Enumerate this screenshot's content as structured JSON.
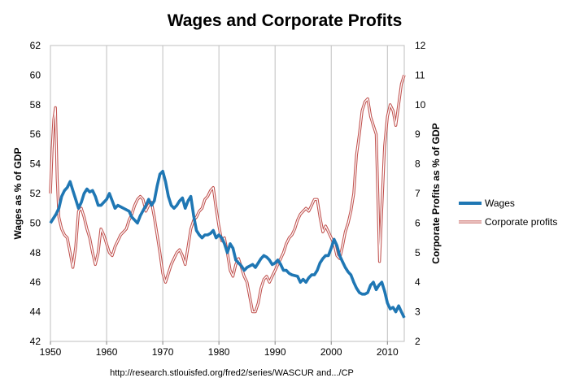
{
  "chart_data": {
    "type": "line",
    "title": "Wages and Corporate Profits",
    "ylabel": "Wages as % of GDP",
    "y2label": "Corporate Profits as % of GDP",
    "xlabel": "",
    "source": "http://research.stlouisfed.org/fred2/series/WASCUR and.../CP",
    "xlim": [
      1950,
      2013
    ],
    "ylim": [
      42,
      62
    ],
    "y2lim": [
      2,
      12
    ],
    "x_ticks": [
      "1950",
      "1960",
      "1970",
      "1980",
      "1990",
      "2000",
      "2010"
    ],
    "y_ticks": [
      "42",
      "44",
      "46",
      "48",
      "50",
      "52",
      "54",
      "56",
      "58",
      "60",
      "62"
    ],
    "y2_ticks": [
      "2",
      "3",
      "4",
      "5",
      "6",
      "7",
      "8",
      "9",
      "10",
      "11",
      "12"
    ],
    "grid": "vertical only",
    "legend_position": "right",
    "series": [
      {
        "name": "Wages",
        "axis": "left",
        "color": "#1f77b4",
        "style": "thick",
        "points": [
          [
            1950.0,
            50.0
          ],
          [
            1950.5,
            50.3
          ],
          [
            1951.0,
            50.6
          ],
          [
            1951.5,
            51.0
          ],
          [
            1952.0,
            51.8
          ],
          [
            1952.5,
            52.2
          ],
          [
            1953.0,
            52.4
          ],
          [
            1953.5,
            52.8
          ],
          [
            1954.0,
            52.2
          ],
          [
            1954.5,
            51.6
          ],
          [
            1955.0,
            51.0
          ],
          [
            1955.5,
            51.4
          ],
          [
            1956.0,
            52.0
          ],
          [
            1956.5,
            52.3
          ],
          [
            1957.0,
            52.1
          ],
          [
            1957.5,
            52.2
          ],
          [
            1958.0,
            51.8
          ],
          [
            1958.5,
            51.2
          ],
          [
            1959.0,
            51.2
          ],
          [
            1959.5,
            51.4
          ],
          [
            1960.0,
            51.6
          ],
          [
            1960.5,
            52.0
          ],
          [
            1961.0,
            51.5
          ],
          [
            1961.5,
            51.0
          ],
          [
            1962.0,
            51.2
          ],
          [
            1963.0,
            51.0
          ],
          [
            1964.0,
            50.8
          ],
          [
            1964.5,
            50.4
          ],
          [
            1965.0,
            50.2
          ],
          [
            1965.5,
            50.0
          ],
          [
            1966.0,
            50.5
          ],
          [
            1967.0,
            51.2
          ],
          [
            1967.5,
            51.6
          ],
          [
            1968.0,
            51.2
          ],
          [
            1968.5,
            51.5
          ],
          [
            1969.0,
            52.5
          ],
          [
            1969.5,
            53.3
          ],
          [
            1970.0,
            53.5
          ],
          [
            1970.5,
            52.8
          ],
          [
            1971.0,
            51.8
          ],
          [
            1971.5,
            51.2
          ],
          [
            1972.0,
            51.0
          ],
          [
            1972.5,
            51.2
          ],
          [
            1973.0,
            51.5
          ],
          [
            1973.5,
            51.7
          ],
          [
            1974.0,
            51.0
          ],
          [
            1974.5,
            51.5
          ],
          [
            1975.0,
            51.8
          ],
          [
            1975.5,
            50.5
          ],
          [
            1976.0,
            49.5
          ],
          [
            1976.5,
            49.2
          ],
          [
            1977.0,
            49.0
          ],
          [
            1977.5,
            49.2
          ],
          [
            1978.0,
            49.2
          ],
          [
            1978.5,
            49.3
          ],
          [
            1979.0,
            49.5
          ],
          [
            1979.5,
            49.0
          ],
          [
            1980.0,
            49.2
          ],
          [
            1980.5,
            49.0
          ],
          [
            1981.0,
            48.6
          ],
          [
            1981.5,
            48.0
          ],
          [
            1982.0,
            48.6
          ],
          [
            1982.5,
            48.3
          ],
          [
            1983.0,
            47.5
          ],
          [
            1983.5,
            47.3
          ],
          [
            1984.0,
            47.1
          ],
          [
            1984.5,
            46.8
          ],
          [
            1985.0,
            47.0
          ],
          [
            1985.5,
            47.1
          ],
          [
            1986.0,
            47.2
          ],
          [
            1986.5,
            47.0
          ],
          [
            1987.0,
            47.3
          ],
          [
            1987.5,
            47.6
          ],
          [
            1988.0,
            47.8
          ],
          [
            1988.5,
            47.7
          ],
          [
            1989.0,
            47.5
          ],
          [
            1989.5,
            47.2
          ],
          [
            1990.0,
            47.3
          ],
          [
            1990.5,
            47.5
          ],
          [
            1991.0,
            47.2
          ],
          [
            1991.5,
            46.8
          ],
          [
            1992.0,
            46.8
          ],
          [
            1992.5,
            46.6
          ],
          [
            1993.0,
            46.5
          ],
          [
            1994.0,
            46.4
          ],
          [
            1994.5,
            46.0
          ],
          [
            1995.0,
            46.2
          ],
          [
            1995.5,
            46.0
          ],
          [
            1996.0,
            46.3
          ],
          [
            1996.5,
            46.5
          ],
          [
            1997.0,
            46.5
          ],
          [
            1997.5,
            46.8
          ],
          [
            1998.0,
            47.3
          ],
          [
            1998.5,
            47.6
          ],
          [
            1999.0,
            47.8
          ],
          [
            1999.5,
            47.8
          ],
          [
            2000.0,
            48.3
          ],
          [
            2000.5,
            48.9
          ],
          [
            2001.0,
            48.5
          ],
          [
            2001.5,
            47.8
          ],
          [
            2002.0,
            47.4
          ],
          [
            2002.5,
            47.0
          ],
          [
            2003.0,
            46.7
          ],
          [
            2003.5,
            46.5
          ],
          [
            2004.0,
            46.0
          ],
          [
            2004.5,
            45.6
          ],
          [
            2005.0,
            45.3
          ],
          [
            2005.5,
            45.2
          ],
          [
            2006.0,
            45.2
          ],
          [
            2006.5,
            45.3
          ],
          [
            2007.0,
            45.8
          ],
          [
            2007.5,
            46.0
          ],
          [
            2008.0,
            45.5
          ],
          [
            2008.5,
            45.8
          ],
          [
            2009.0,
            46.0
          ],
          [
            2009.5,
            45.4
          ],
          [
            2010.0,
            44.6
          ],
          [
            2010.5,
            44.2
          ],
          [
            2011.0,
            44.3
          ],
          [
            2011.5,
            44.0
          ],
          [
            2012.0,
            44.4
          ],
          [
            2012.5,
            44.0
          ],
          [
            2013.0,
            43.6
          ]
        ]
      },
      {
        "name": "Corporate profits",
        "axis": "right",
        "color": "#c0504d",
        "style": "double",
        "points": [
          [
            1950.0,
            7.0
          ],
          [
            1950.3,
            8.5
          ],
          [
            1950.6,
            9.5
          ],
          [
            1950.9,
            9.9
          ],
          [
            1951.2,
            7.5
          ],
          [
            1951.5,
            6.2
          ],
          [
            1952.0,
            5.8
          ],
          [
            1952.5,
            5.6
          ],
          [
            1953.0,
            5.5
          ],
          [
            1953.5,
            5.0
          ],
          [
            1954.0,
            4.5
          ],
          [
            1954.5,
            5.2
          ],
          [
            1955.0,
            6.4
          ],
          [
            1955.5,
            6.5
          ],
          [
            1956.0,
            6.2
          ],
          [
            1956.5,
            5.8
          ],
          [
            1957.0,
            5.5
          ],
          [
            1957.5,
            5.0
          ],
          [
            1958.0,
            4.6
          ],
          [
            1958.5,
            5.0
          ],
          [
            1959.0,
            5.8
          ],
          [
            1959.5,
            5.6
          ],
          [
            1960.0,
            5.3
          ],
          [
            1960.5,
            5.0
          ],
          [
            1961.0,
            4.9
          ],
          [
            1961.5,
            5.2
          ],
          [
            1962.0,
            5.4
          ],
          [
            1962.5,
            5.6
          ],
          [
            1963.0,
            5.7
          ],
          [
            1963.5,
            5.8
          ],
          [
            1964.0,
            6.1
          ],
          [
            1964.5,
            6.3
          ],
          [
            1965.0,
            6.6
          ],
          [
            1965.5,
            6.8
          ],
          [
            1966.0,
            6.9
          ],
          [
            1966.5,
            6.8
          ],
          [
            1967.0,
            6.4
          ],
          [
            1967.5,
            6.6
          ],
          [
            1968.0,
            6.7
          ],
          [
            1968.5,
            6.2
          ],
          [
            1969.0,
            5.6
          ],
          [
            1969.5,
            5.0
          ],
          [
            1970.0,
            4.3
          ],
          [
            1970.5,
            4.0
          ],
          [
            1971.0,
            4.3
          ],
          [
            1971.5,
            4.6
          ],
          [
            1972.0,
            4.8
          ],
          [
            1972.5,
            5.0
          ],
          [
            1973.0,
            5.1
          ],
          [
            1973.5,
            4.9
          ],
          [
            1974.0,
            4.6
          ],
          [
            1974.5,
            5.2
          ],
          [
            1975.0,
            5.8
          ],
          [
            1975.5,
            6.1
          ],
          [
            1976.0,
            6.2
          ],
          [
            1976.5,
            6.4
          ],
          [
            1977.0,
            6.5
          ],
          [
            1977.5,
            6.8
          ],
          [
            1978.0,
            6.9
          ],
          [
            1978.5,
            7.1
          ],
          [
            1979.0,
            7.2
          ],
          [
            1979.5,
            6.5
          ],
          [
            1980.0,
            5.9
          ],
          [
            1980.5,
            5.4
          ],
          [
            1981.0,
            5.5
          ],
          [
            1981.5,
            5.0
          ],
          [
            1982.0,
            4.4
          ],
          [
            1982.5,
            4.2
          ],
          [
            1983.0,
            4.6
          ],
          [
            1983.5,
            4.8
          ],
          [
            1984.0,
            4.5
          ],
          [
            1984.5,
            4.2
          ],
          [
            1985.0,
            4.0
          ],
          [
            1985.5,
            3.5
          ],
          [
            1986.0,
            3.0
          ],
          [
            1986.5,
            3.0
          ],
          [
            1987.0,
            3.3
          ],
          [
            1987.5,
            3.8
          ],
          [
            1988.0,
            4.1
          ],
          [
            1988.5,
            4.2
          ],
          [
            1989.0,
            4.0
          ],
          [
            1989.5,
            4.2
          ],
          [
            1990.0,
            4.4
          ],
          [
            1990.5,
            4.6
          ],
          [
            1991.0,
            4.8
          ],
          [
            1991.5,
            5.0
          ],
          [
            1992.0,
            5.3
          ],
          [
            1992.5,
            5.5
          ],
          [
            1993.0,
            5.6
          ],
          [
            1993.5,
            5.8
          ],
          [
            1994.0,
            6.1
          ],
          [
            1994.5,
            6.3
          ],
          [
            1995.0,
            6.4
          ],
          [
            1995.5,
            6.5
          ],
          [
            1996.0,
            6.4
          ],
          [
            1996.5,
            6.6
          ],
          [
            1997.0,
            6.8
          ],
          [
            1997.5,
            6.8
          ],
          [
            1998.0,
            6.2
          ],
          [
            1998.5,
            5.7
          ],
          [
            1999.0,
            5.9
          ],
          [
            1999.5,
            5.7
          ],
          [
            2000.0,
            5.5
          ],
          [
            2000.5,
            5.3
          ],
          [
            2001.0,
            4.9
          ],
          [
            2001.5,
            4.8
          ],
          [
            2002.0,
            5.2
          ],
          [
            2002.5,
            5.7
          ],
          [
            2003.0,
            6.0
          ],
          [
            2003.5,
            6.4
          ],
          [
            2004.0,
            7.0
          ],
          [
            2004.5,
            8.3
          ],
          [
            2005.0,
            9.0
          ],
          [
            2005.5,
            9.8
          ],
          [
            2006.0,
            10.1
          ],
          [
            2006.5,
            10.2
          ],
          [
            2007.0,
            9.6
          ],
          [
            2007.5,
            9.3
          ],
          [
            2008.0,
            9.0
          ],
          [
            2008.3,
            7.0
          ],
          [
            2008.6,
            4.7
          ],
          [
            2009.0,
            6.5
          ],
          [
            2009.5,
            8.6
          ],
          [
            2010.0,
            9.6
          ],
          [
            2010.5,
            10.0
          ],
          [
            2011.0,
            9.8
          ],
          [
            2011.5,
            9.3
          ],
          [
            2012.0,
            10.0
          ],
          [
            2012.5,
            10.7
          ],
          [
            2013.0,
            11.0
          ]
        ]
      }
    ]
  },
  "colors": {
    "wages": "#1f77b4",
    "profits": "#c0504d",
    "grid": "#bfbfbf"
  }
}
